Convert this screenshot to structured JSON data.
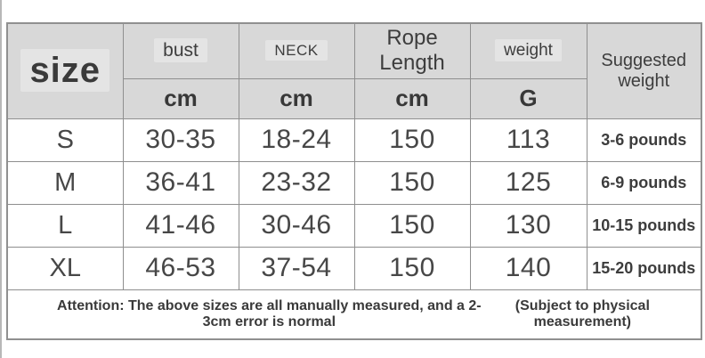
{
  "chart_data": {
    "type": "table",
    "title": "Size chart",
    "columns": [
      "size",
      "bust (cm)",
      "NECK (cm)",
      "Rope Length (cm)",
      "weight (G)",
      "Suggested weight"
    ],
    "rows": [
      [
        "S",
        "30-35",
        "18-24",
        "150",
        "113",
        "3-6 pounds"
      ],
      [
        "M",
        "36-41",
        "23-32",
        "150",
        "125",
        "6-9 pounds"
      ],
      [
        "L",
        "41-46",
        "30-46",
        "150",
        "130",
        "10-15 pounds"
      ],
      [
        "XL",
        "46-53",
        "37-54",
        "150",
        "140",
        "15-20 pounds"
      ]
    ],
    "footnotes": [
      "Attention: The above sizes are all manually measured, and a 2-3cm error is normal",
      "(Subject to physical measurement)"
    ]
  },
  "header": {
    "size_label": "size",
    "groups": [
      {
        "label": "bust",
        "unit": "cm"
      },
      {
        "label": "NECK",
        "unit": "cm"
      },
      {
        "label": "Rope Length",
        "unit": "cm"
      },
      {
        "label": "weight",
        "unit": "G"
      }
    ],
    "suggested_weight_label": "Suggested weight"
  },
  "footer": {
    "attention": "Attention: The above sizes are all manually measured, and a 2-3cm error is normal",
    "note": "(Subject to physical measurement)"
  },
  "colors": {
    "header_bg": "#d8d8d8",
    "row_bg": "#ffffff",
    "grid_border": "#8f8f8f",
    "outer_border": "#909090",
    "text": "#3d3d3d"
  }
}
